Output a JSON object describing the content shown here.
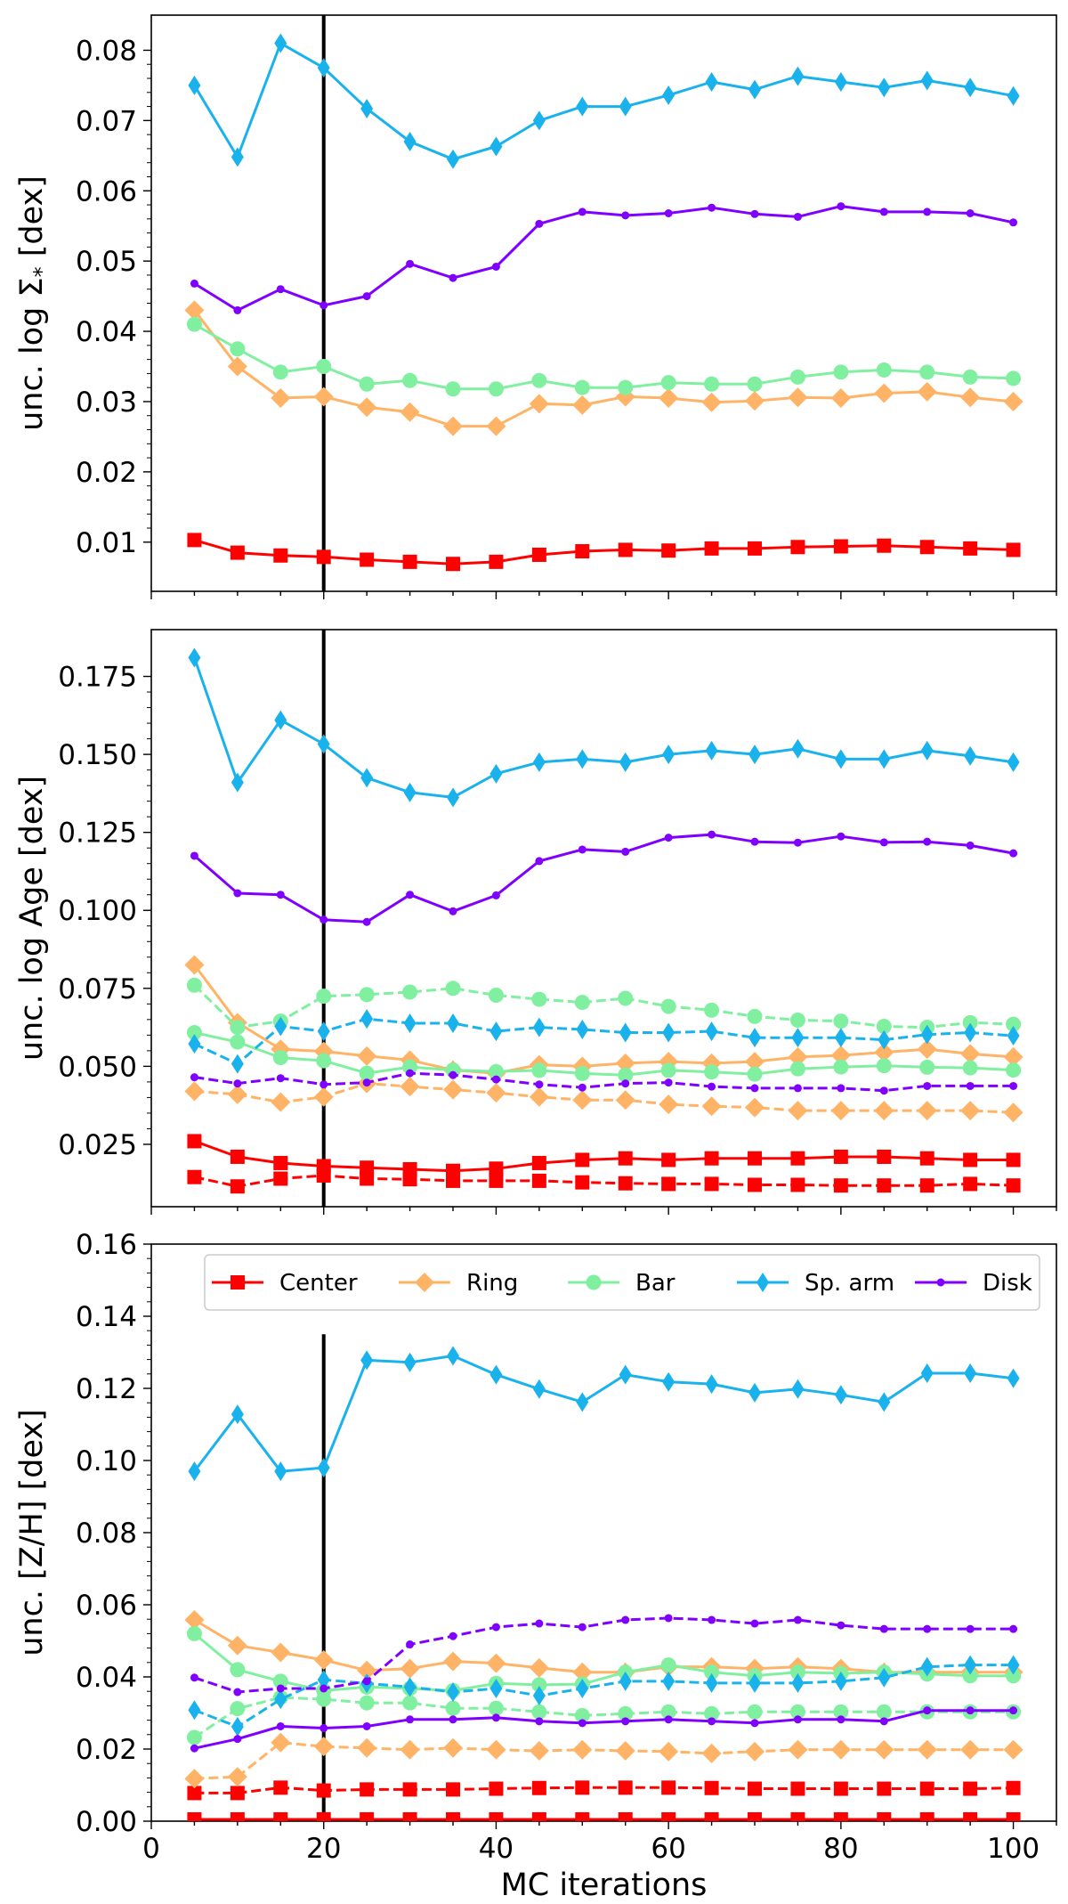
{
  "figure": {
    "xlabel": "MC iterations"
  },
  "legend": [
    {
      "name": "Center",
      "color": "#ff0000",
      "marker": "square"
    },
    {
      "name": "Ring",
      "color": "#ffb366",
      "marker": "diamond"
    },
    {
      "name": "Bar",
      "color": "#80f0a0",
      "marker": "circle"
    },
    {
      "name": "Sp. arm",
      "color": "#1ab2ec",
      "marker": "thin-diamond"
    },
    {
      "name": "Disk",
      "color": "#8000ff",
      "marker": "point"
    }
  ],
  "chart_data": [
    {
      "type": "line",
      "title": "",
      "xlabel": "",
      "ylabel": "unc. log Σ",
      "ylabel_sub": "*",
      "ylabel_suffix": " [dex]",
      "xlim": [
        0,
        105
      ],
      "ylim": [
        0.003,
        0.085
      ],
      "xticks": [
        0,
        20,
        40,
        60,
        80,
        100
      ],
      "yticks": [
        0.01,
        0.02,
        0.03,
        0.04,
        0.05,
        0.06,
        0.07,
        0.08
      ],
      "ytick_labels": [
        "0.01",
        "0.02",
        "0.03",
        "0.04",
        "0.05",
        "0.06",
        "0.07",
        "0.08"
      ],
      "show_xtick_labels": false,
      "vline": {
        "x": 20
      },
      "x": [
        5,
        10,
        15,
        20,
        25,
        30,
        35,
        40,
        45,
        50,
        55,
        60,
        65,
        70,
        75,
        80,
        85,
        90,
        95,
        100
      ],
      "series": [
        {
          "name": "Center",
          "style": "solid",
          "values": [
            0.0103,
            0.0085,
            0.0081,
            0.0079,
            0.0075,
            0.0072,
            0.0069,
            0.0072,
            0.0082,
            0.0087,
            0.0089,
            0.0088,
            0.0091,
            0.0091,
            0.0093,
            0.0094,
            0.0095,
            0.0093,
            0.0091,
            0.0089
          ]
        },
        {
          "name": "Ring",
          "style": "solid",
          "values": [
            0.043,
            0.035,
            0.0305,
            0.0307,
            0.0292,
            0.0285,
            0.0265,
            0.0265,
            0.0297,
            0.0295,
            0.0307,
            0.0305,
            0.0299,
            0.0301,
            0.0306,
            0.0305,
            0.0312,
            0.0314,
            0.0306,
            0.03
          ]
        },
        {
          "name": "Bar",
          "style": "solid",
          "values": [
            0.041,
            0.0375,
            0.0342,
            0.035,
            0.0325,
            0.033,
            0.0318,
            0.0318,
            0.033,
            0.032,
            0.032,
            0.0327,
            0.0325,
            0.0325,
            0.0335,
            0.0342,
            0.0345,
            0.0342,
            0.0335,
            0.0333
          ]
        },
        {
          "name": "Sp. arm",
          "style": "solid",
          "values": [
            0.075,
            0.0648,
            0.081,
            0.0775,
            0.0717,
            0.067,
            0.0645,
            0.0663,
            0.07,
            0.072,
            0.072,
            0.0736,
            0.0755,
            0.0744,
            0.0763,
            0.0755,
            0.0747,
            0.0757,
            0.0747,
            0.0735
          ]
        },
        {
          "name": "Disk",
          "style": "solid",
          "values": [
            0.0468,
            0.043,
            0.046,
            0.0437,
            0.045,
            0.0496,
            0.0476,
            0.0492,
            0.0553,
            0.057,
            0.0565,
            0.0568,
            0.0576,
            0.0567,
            0.0563,
            0.0578,
            0.057,
            0.057,
            0.0568,
            0.0555
          ]
        }
      ]
    },
    {
      "type": "line",
      "title": "",
      "xlabel": "",
      "ylabel": "unc. log Age [dex]",
      "xlim": [
        0,
        105
      ],
      "ylim": [
        0.005,
        0.19
      ],
      "xticks": [
        0,
        20,
        40,
        60,
        80,
        100
      ],
      "yticks": [
        0.025,
        0.05,
        0.075,
        0.1,
        0.125,
        0.15,
        0.175
      ],
      "ytick_labels": [
        "0.025",
        "0.050",
        "0.075",
        "0.100",
        "0.125",
        "0.150",
        "0.175"
      ],
      "show_xtick_labels": false,
      "vline": {
        "x": 20
      },
      "x": [
        5,
        10,
        15,
        20,
        25,
        30,
        35,
        40,
        45,
        50,
        55,
        60,
        65,
        70,
        75,
        80,
        85,
        90,
        95,
        100
      ],
      "series": [
        {
          "name": "Center",
          "style": "solid",
          "values": [
            0.026,
            0.021,
            0.019,
            0.018,
            0.0175,
            0.017,
            0.0165,
            0.0172,
            0.019,
            0.02,
            0.0205,
            0.02,
            0.0205,
            0.0205,
            0.0205,
            0.021,
            0.021,
            0.0205,
            0.02,
            0.02
          ]
        },
        {
          "name": "Center",
          "style": "dashed",
          "values": [
            0.0145,
            0.0115,
            0.014,
            0.015,
            0.014,
            0.0138,
            0.0133,
            0.0133,
            0.0133,
            0.0128,
            0.0125,
            0.0123,
            0.0123,
            0.012,
            0.012,
            0.0118,
            0.0118,
            0.0118,
            0.0123,
            0.0118
          ]
        },
        {
          "name": "Ring",
          "style": "solid",
          "values": [
            0.0825,
            0.064,
            0.0555,
            0.0548,
            0.0533,
            0.052,
            0.0488,
            0.0478,
            0.0505,
            0.05,
            0.051,
            0.0515,
            0.051,
            0.0515,
            0.053,
            0.0535,
            0.0545,
            0.0555,
            0.054,
            0.053
          ]
        },
        {
          "name": "Ring",
          "style": "dashed",
          "values": [
            0.042,
            0.041,
            0.0385,
            0.0402,
            0.0445,
            0.0435,
            0.0425,
            0.0415,
            0.0402,
            0.0392,
            0.0392,
            0.0378,
            0.0372,
            0.0368,
            0.0358,
            0.0358,
            0.0358,
            0.0358,
            0.0358,
            0.0352
          ]
        },
        {
          "name": "Bar",
          "style": "solid",
          "values": [
            0.0608,
            0.0578,
            0.0528,
            0.0518,
            0.0478,
            0.0498,
            0.0488,
            0.0483,
            0.0487,
            0.0477,
            0.0472,
            0.0487,
            0.0482,
            0.0475,
            0.0492,
            0.0498,
            0.0502,
            0.0497,
            0.0495,
            0.0488
          ]
        },
        {
          "name": "Bar",
          "style": "dashed",
          "values": [
            0.076,
            0.0625,
            0.0645,
            0.0725,
            0.073,
            0.0738,
            0.075,
            0.0728,
            0.0715,
            0.0705,
            0.0718,
            0.0692,
            0.068,
            0.066,
            0.0648,
            0.0645,
            0.0628,
            0.0625,
            0.064,
            0.0635
          ]
        },
        {
          "name": "Sp. arm",
          "style": "solid",
          "values": [
            0.181,
            0.141,
            0.161,
            0.1533,
            0.1425,
            0.1378,
            0.1362,
            0.1438,
            0.1475,
            0.1485,
            0.1475,
            0.15,
            0.1512,
            0.15,
            0.1518,
            0.1485,
            0.1485,
            0.1512,
            0.1495,
            0.1475
          ]
        },
        {
          "name": "Sp. arm",
          "style": "dashed",
          "values": [
            0.0572,
            0.0508,
            0.0628,
            0.0612,
            0.0652,
            0.0638,
            0.0638,
            0.0612,
            0.0625,
            0.0618,
            0.0608,
            0.0608,
            0.0612,
            0.0592,
            0.0592,
            0.0592,
            0.0585,
            0.0602,
            0.0608,
            0.0598
          ]
        },
        {
          "name": "Disk",
          "style": "solid",
          "values": [
            0.1175,
            0.1055,
            0.105,
            0.097,
            0.0963,
            0.105,
            0.0997,
            0.1048,
            0.1158,
            0.1195,
            0.1188,
            0.1233,
            0.1243,
            0.122,
            0.1217,
            0.1237,
            0.1218,
            0.122,
            0.1208,
            0.1183
          ]
        },
        {
          "name": "Disk",
          "style": "dashed",
          "values": [
            0.0465,
            0.0445,
            0.0462,
            0.0442,
            0.0448,
            0.0478,
            0.0472,
            0.0458,
            0.0442,
            0.0432,
            0.0445,
            0.0448,
            0.0435,
            0.043,
            0.043,
            0.043,
            0.0422,
            0.0437,
            0.0437,
            0.0437
          ]
        }
      ]
    },
    {
      "type": "line",
      "title": "",
      "xlabel": "MC iterations",
      "ylabel": "unc. [Z/H] [dex]",
      "xlim": [
        0,
        105
      ],
      "ylim": [
        0.0,
        0.16
      ],
      "xticks": [
        0,
        20,
        40,
        60,
        80,
        100
      ],
      "xtick_labels": [
        "0",
        "20",
        "40",
        "60",
        "80",
        "100"
      ],
      "yticks": [
        0.0,
        0.02,
        0.04,
        0.06,
        0.08,
        0.1,
        0.12,
        0.14,
        0.16
      ],
      "ytick_labels": [
        "0.00",
        "0.02",
        "0.04",
        "0.06",
        "0.08",
        "0.10",
        "0.12",
        "0.14",
        "0.16"
      ],
      "show_xtick_labels": true,
      "vline": {
        "x": 20,
        "ymax": 0.135
      },
      "legend_position": "upper center",
      "x": [
        5,
        10,
        15,
        20,
        25,
        30,
        35,
        40,
        45,
        50,
        55,
        60,
        65,
        70,
        75,
        80,
        85,
        90,
        95,
        100
      ],
      "series": [
        {
          "name": "Center",
          "style": "solid",
          "values": [
            0.0005,
            0.0005,
            0.0005,
            0.0005,
            0.0005,
            0.0005,
            0.0005,
            0.0005,
            0.0005,
            0.0005,
            0.0005,
            0.0005,
            0.0005,
            0.0005,
            0.0005,
            0.0005,
            0.0005,
            0.0005,
            0.0005,
            0.0005
          ]
        },
        {
          "name": "Center",
          "style": "dashed",
          "values": [
            0.0078,
            0.0078,
            0.0093,
            0.0085,
            0.0088,
            0.0088,
            0.0088,
            0.009,
            0.0092,
            0.0093,
            0.0093,
            0.0093,
            0.0092,
            0.009,
            0.009,
            0.009,
            0.009,
            0.009,
            0.009,
            0.0092
          ]
        },
        {
          "name": "Ring",
          "style": "solid",
          "values": [
            0.0558,
            0.0487,
            0.0468,
            0.0447,
            0.0418,
            0.0423,
            0.0443,
            0.0438,
            0.0425,
            0.0413,
            0.0413,
            0.0428,
            0.0428,
            0.0423,
            0.0428,
            0.0423,
            0.0413,
            0.0413,
            0.0413,
            0.0413
          ]
        },
        {
          "name": "Ring",
          "style": "dashed",
          "values": [
            0.0118,
            0.0123,
            0.0218,
            0.0207,
            0.0203,
            0.0198,
            0.0203,
            0.0198,
            0.0195,
            0.0198,
            0.0195,
            0.0193,
            0.0188,
            0.0193,
            0.0198,
            0.0198,
            0.0198,
            0.0198,
            0.0198,
            0.0198
          ]
        },
        {
          "name": "Bar",
          "style": "solid",
          "values": [
            0.052,
            0.042,
            0.0388,
            0.0362,
            0.0372,
            0.0368,
            0.0362,
            0.0382,
            0.0378,
            0.038,
            0.0413,
            0.0433,
            0.0413,
            0.0403,
            0.0413,
            0.041,
            0.0413,
            0.0408,
            0.0403,
            0.0403
          ]
        },
        {
          "name": "Bar",
          "style": "dashed",
          "values": [
            0.0232,
            0.0312,
            0.0343,
            0.0338,
            0.0328,
            0.0328,
            0.0313,
            0.0313,
            0.0303,
            0.0293,
            0.0298,
            0.0303,
            0.0298,
            0.0303,
            0.0303,
            0.0303,
            0.0303,
            0.0303,
            0.0303,
            0.0303
          ]
        },
        {
          "name": "Sp. arm",
          "style": "solid",
          "values": [
            0.097,
            0.1128,
            0.097,
            0.098,
            0.1278,
            0.1272,
            0.129,
            0.1238,
            0.1198,
            0.1162,
            0.1238,
            0.1218,
            0.1212,
            0.1188,
            0.1198,
            0.1182,
            0.1162,
            0.1242,
            0.1242,
            0.1228
          ]
        },
        {
          "name": "Sp. arm",
          "style": "dashed",
          "values": [
            0.0308,
            0.0262,
            0.0338,
            0.0392,
            0.0382,
            0.0372,
            0.0358,
            0.0368,
            0.0348,
            0.0368,
            0.0388,
            0.0388,
            0.0383,
            0.0383,
            0.0383,
            0.0388,
            0.0398,
            0.0428,
            0.0433,
            0.0433
          ]
        },
        {
          "name": "Disk",
          "style": "solid",
          "values": [
            0.0202,
            0.0228,
            0.0263,
            0.0258,
            0.0263,
            0.0282,
            0.0282,
            0.0287,
            0.0277,
            0.0272,
            0.0277,
            0.0282,
            0.0277,
            0.0272,
            0.0282,
            0.0282,
            0.0277,
            0.0307,
            0.0307,
            0.0307
          ]
        },
        {
          "name": "Disk",
          "style": "dashed",
          "values": [
            0.0398,
            0.0358,
            0.0368,
            0.0368,
            0.0388,
            0.049,
            0.0513,
            0.0538,
            0.0548,
            0.0538,
            0.0558,
            0.0563,
            0.0558,
            0.0548,
            0.0558,
            0.0543,
            0.0533,
            0.0533,
            0.0533,
            0.0533
          ]
        }
      ]
    }
  ]
}
